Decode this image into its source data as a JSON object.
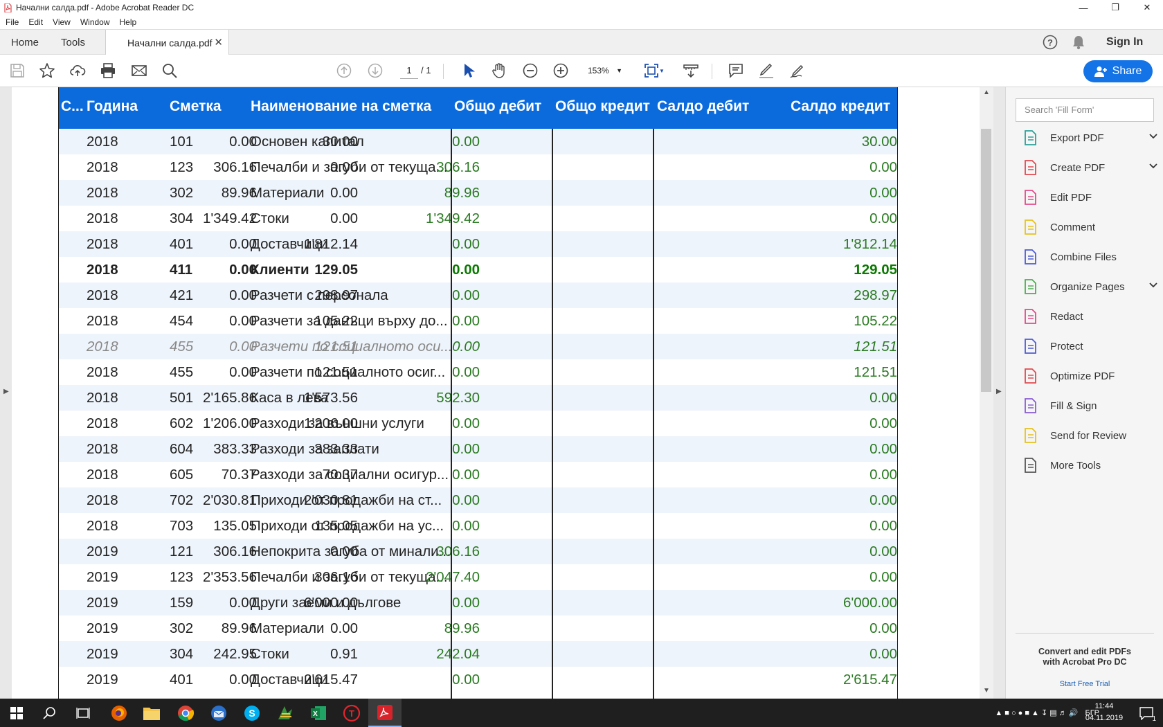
{
  "window": {
    "title": "Начални салда.pdf - Adobe Acrobat Reader DC"
  },
  "menu": [
    "File",
    "Edit",
    "View",
    "Window",
    "Help"
  ],
  "tabs": {
    "home": "Home",
    "tools": "Tools",
    "document": "Начални салда.pdf"
  },
  "topright": {
    "sign_in": "Sign In"
  },
  "toolbar": {
    "page_current": "1",
    "page_total": "/ 1",
    "zoom": "153%",
    "share": "Share"
  },
  "table": {
    "headers": {
      "c": "С...",
      "year": "Година",
      "account": "Сметка",
      "name": "Наименование на сметка",
      "total_debit": "Общо дебит",
      "total_credit": "Общо кредит",
      "balance_debit": "Салдо дебит",
      "balance_credit": "Салдо кредит"
    },
    "rows": [
      {
        "year": "2018",
        "account": "101",
        "name": "Основен капитал",
        "td": "0.00",
        "tc": "30.00",
        "sd": "0.00",
        "sc": "30.00",
        "style": ""
      },
      {
        "year": "2018",
        "account": "123",
        "name": "Печалби и загуби от текуща...",
        "td": "306.16",
        "tc": "0.00",
        "sd": "306.16",
        "sc": "0.00",
        "style": ""
      },
      {
        "year": "2018",
        "account": "302",
        "name": "Материали",
        "td": "89.96",
        "tc": "0.00",
        "sd": "89.96",
        "sc": "0.00",
        "style": ""
      },
      {
        "year": "2018",
        "account": "304",
        "name": "Стоки",
        "td": "1'349.42",
        "tc": "0.00",
        "sd": "1'349.42",
        "sc": "0.00",
        "style": ""
      },
      {
        "year": "2018",
        "account": "401",
        "name": "Доставчици",
        "td": "0.00",
        "tc": "1'812.14",
        "sd": "0.00",
        "sc": "1'812.14",
        "style": ""
      },
      {
        "year": "2018",
        "account": "411",
        "name": "Клиенти",
        "td": "0.00",
        "tc": "129.05",
        "sd": "0.00",
        "sc": "129.05",
        "style": "bold"
      },
      {
        "year": "2018",
        "account": "421",
        "name": "Разчети с персонала",
        "td": "0.00",
        "tc": "298.97",
        "sd": "0.00",
        "sc": "298.97",
        "style": ""
      },
      {
        "year": "2018",
        "account": "454",
        "name": "Разчети за данъци върху до...",
        "td": "0.00",
        "tc": "105.22",
        "sd": "0.00",
        "sc": "105.22",
        "style": ""
      },
      {
        "year": "2018",
        "account": "455",
        "name": "Разчети по социалното оси...",
        "td": "0.00",
        "tc": "121.51",
        "sd": "0.00",
        "sc": "121.51",
        "style": "italic"
      },
      {
        "year": "2018",
        "account": "455",
        "name": "Разчети по социалното осиг...",
        "td": "0.00",
        "tc": "121.51",
        "sd": "0.00",
        "sc": "121.51",
        "style": ""
      },
      {
        "year": "2018",
        "account": "501",
        "name": "Каса в лева",
        "td": "2'165.86",
        "tc": "1'573.56",
        "sd": "592.30",
        "sc": "0.00",
        "style": ""
      },
      {
        "year": "2018",
        "account": "602",
        "name": "Разходи за външни услуги",
        "td": "1'206.00",
        "tc": "1'206.00",
        "sd": "0.00",
        "sc": "0.00",
        "style": ""
      },
      {
        "year": "2018",
        "account": "604",
        "name": "Разходи за заплати",
        "td": "383.33",
        "tc": "383.33",
        "sd": "0.00",
        "sc": "0.00",
        "style": ""
      },
      {
        "year": "2018",
        "account": "605",
        "name": "Разходи за социални осигур...",
        "td": "70.37",
        "tc": "70.37",
        "sd": "0.00",
        "sc": "0.00",
        "style": ""
      },
      {
        "year": "2018",
        "account": "702",
        "name": "Приходи от продажби на ст...",
        "td": "2'030.81",
        "tc": "2'030.81",
        "sd": "0.00",
        "sc": "0.00",
        "style": ""
      },
      {
        "year": "2018",
        "account": "703",
        "name": "Приходи от продажби на ус...",
        "td": "135.05",
        "tc": "135.05",
        "sd": "0.00",
        "sc": "0.00",
        "style": ""
      },
      {
        "year": "2019",
        "account": "121",
        "name": "Непокрита загуба от минали...",
        "td": "306.16",
        "tc": "0.00",
        "sd": "306.16",
        "sc": "0.00",
        "style": ""
      },
      {
        "year": "2019",
        "account": "123",
        "name": "Печалби и загуби от текуща...",
        "td": "2'353.56",
        "tc": "306.16",
        "sd": "2'047.40",
        "sc": "0.00",
        "style": ""
      },
      {
        "year": "2019",
        "account": "159",
        "name": "Други заеми и дългове",
        "td": "0.00",
        "tc": "6'000.00",
        "sd": "0.00",
        "sc": "6'000.00",
        "style": ""
      },
      {
        "year": "2019",
        "account": "302",
        "name": "Материали",
        "td": "89.96",
        "tc": "0.00",
        "sd": "89.96",
        "sc": "0.00",
        "style": ""
      },
      {
        "year": "2019",
        "account": "304",
        "name": "Стоки",
        "td": "242.95",
        "tc": "0.91",
        "sd": "242.04",
        "sc": "0.00",
        "style": ""
      },
      {
        "year": "2019",
        "account": "401",
        "name": "Доставчици",
        "td": "0.00",
        "tc": "2'615.47",
        "sd": "0.00",
        "sc": "2'615.47",
        "style": ""
      }
    ]
  },
  "rightpanel": {
    "search_placeholder": "Search 'Fill Form'",
    "tools": [
      {
        "label": "Export PDF",
        "icon": "export-pdf-icon",
        "color": "#2aa198",
        "chevron": true
      },
      {
        "label": "Create PDF",
        "icon": "create-pdf-icon",
        "color": "#e34850",
        "chevron": true
      },
      {
        "label": "Edit PDF",
        "icon": "edit-pdf-icon",
        "color": "#e34a8a",
        "chevron": false
      },
      {
        "label": "Comment",
        "icon": "comment-icon",
        "color": "#e6c21b",
        "chevron": false
      },
      {
        "label": "Combine Files",
        "icon": "combine-files-icon",
        "color": "#4d5bd6",
        "chevron": false
      },
      {
        "label": "Organize Pages",
        "icon": "organize-pages-icon",
        "color": "#4caf50",
        "chevron": true
      },
      {
        "label": "Redact",
        "icon": "redact-icon",
        "color": "#e34a8a",
        "chevron": false
      },
      {
        "label": "Protect",
        "icon": "protect-icon",
        "color": "#4d5bd6",
        "chevron": false
      },
      {
        "label": "Optimize PDF",
        "icon": "optimize-pdf-icon",
        "color": "#e34850",
        "chevron": false
      },
      {
        "label": "Fill & Sign",
        "icon": "fill-sign-icon",
        "color": "#8a5cd6",
        "chevron": false
      },
      {
        "label": "Send for Review",
        "icon": "send-review-icon",
        "color": "#e6c21b",
        "chevron": false
      },
      {
        "label": "More Tools",
        "icon": "more-tools-icon",
        "color": "#555555",
        "chevron": false
      }
    ],
    "promo_line1": "Convert and edit PDFs",
    "promo_line2": "with Acrobat Pro DC",
    "promo_link": "Start Free Trial"
  },
  "taskbar": {
    "lang": "БГР",
    "time": "11:44",
    "date": "04.11.2019",
    "notifications": "1"
  },
  "colors": {
    "header_blue": "#0b6bdd",
    "share_blue": "#1473e6",
    "balance_green": "#2a7a22"
  }
}
